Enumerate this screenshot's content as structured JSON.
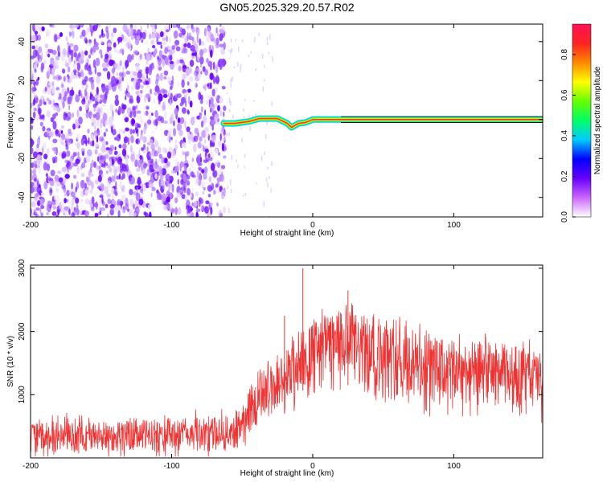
{
  "title": "GN05.2025.329.20.57.R02",
  "chart_data": [
    {
      "type": "heatmap",
      "xlabel": "Height of straight line (km)",
      "ylabel": "Frequency (Hz)",
      "xlim": [
        -200,
        163
      ],
      "ylim": [
        -50,
        49
      ],
      "xticks": [
        -200,
        -100,
        0,
        100
      ],
      "xtick_labels": [
        "-200",
        "-100",
        "0",
        "100"
      ],
      "yticks": [
        -40,
        -20,
        0,
        20,
        40
      ],
      "ytick_labels": [
        "-40",
        "-20",
        "0",
        "20",
        "40"
      ],
      "noise_region_x": [
        -200,
        -62
      ],
      "carrier_freq": 0,
      "carrier_profile": {
        "x": [
          -63,
          -55,
          -45,
          -38,
          -25,
          -18,
          -15,
          -10,
          -5,
          0,
          5,
          10,
          20,
          163
        ],
        "y": [
          -2,
          -2,
          -1,
          0.5,
          0.5,
          -2,
          -4,
          -2,
          -1.5,
          0,
          0,
          0,
          0,
          0
        ]
      },
      "colorbar": {
        "label": "Normalized spectral amplitude",
        "ticks": [
          0.0,
          0.2,
          0.4,
          0.6,
          0.8
        ],
        "tick_labels": [
          "0.0",
          "0.2",
          "0.4",
          "0.6",
          "0.8"
        ],
        "range": [
          0,
          0.95
        ],
        "colors": [
          "#ffffff",
          "#cc66ff",
          "#6600ff",
          "#0000ff",
          "#00ccff",
          "#00ff66",
          "#66ff00",
          "#ffff00",
          "#ff8800",
          "#ff2222",
          "#ff1155"
        ]
      }
    },
    {
      "type": "line",
      "xlabel": "Height of straight line (km)",
      "ylabel": "SNR (10 * v/v)",
      "xlim": [
        -200,
        163
      ],
      "ylim": [
        0,
        3050
      ],
      "xticks": [
        -200,
        -100,
        0,
        100
      ],
      "xtick_labels": [
        "-200",
        "-100",
        "0",
        "100"
      ],
      "yticks": [
        1000,
        2000,
        3000
      ],
      "ytick_labels": [
        "1000",
        "2000",
        "3000"
      ],
      "color": "#ee3333",
      "series_envelope": {
        "x": [
          -200,
          -150,
          -100,
          -60,
          -52,
          -45,
          -35,
          -20,
          -12,
          -6,
          0,
          10,
          20,
          30,
          40,
          60,
          80,
          100,
          120,
          140,
          163
        ],
        "low": [
          80,
          90,
          100,
          110,
          150,
          350,
          650,
          700,
          900,
          1100,
          1200,
          1300,
          1200,
          1100,
          950,
          900,
          850,
          850,
          850,
          800,
          750
        ],
        "high": [
          550,
          580,
          620,
          650,
          800,
          1150,
          1350,
          1700,
          1950,
          2050,
          2150,
          2250,
          2350,
          2300,
          2200,
          2100,
          1950,
          1850,
          1850,
          1800,
          1700
        ]
      },
      "peaks": [
        {
          "x": -7,
          "y": 3000
        },
        {
          "x": 25,
          "y": 2650
        },
        {
          "x": -20,
          "y": 2250
        }
      ]
    }
  ]
}
